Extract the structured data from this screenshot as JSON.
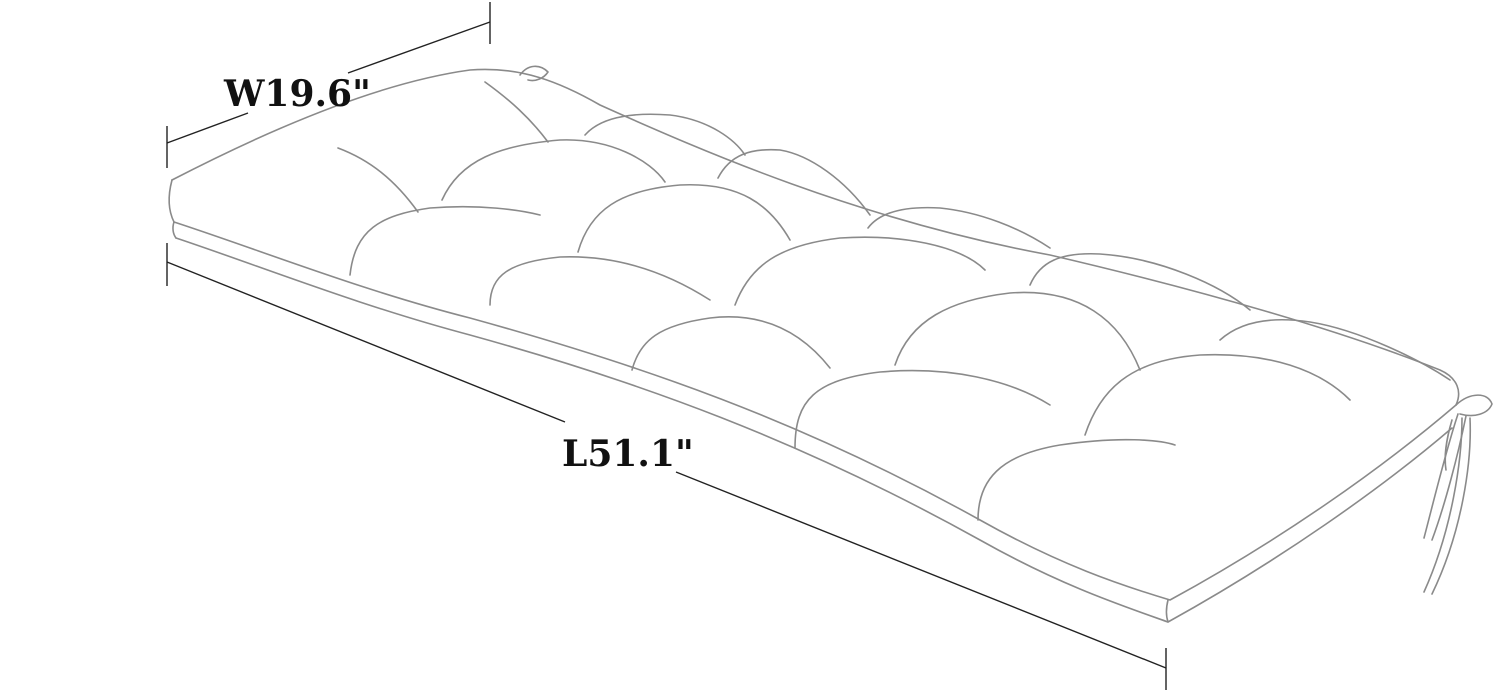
{
  "dimensions": {
    "width_label": "W19.6\"",
    "length_label": "L51.1\""
  },
  "colors": {
    "outline": "#8a8a8a",
    "dimension_line": "#222222",
    "text": "#111111",
    "background": "#ffffff"
  }
}
